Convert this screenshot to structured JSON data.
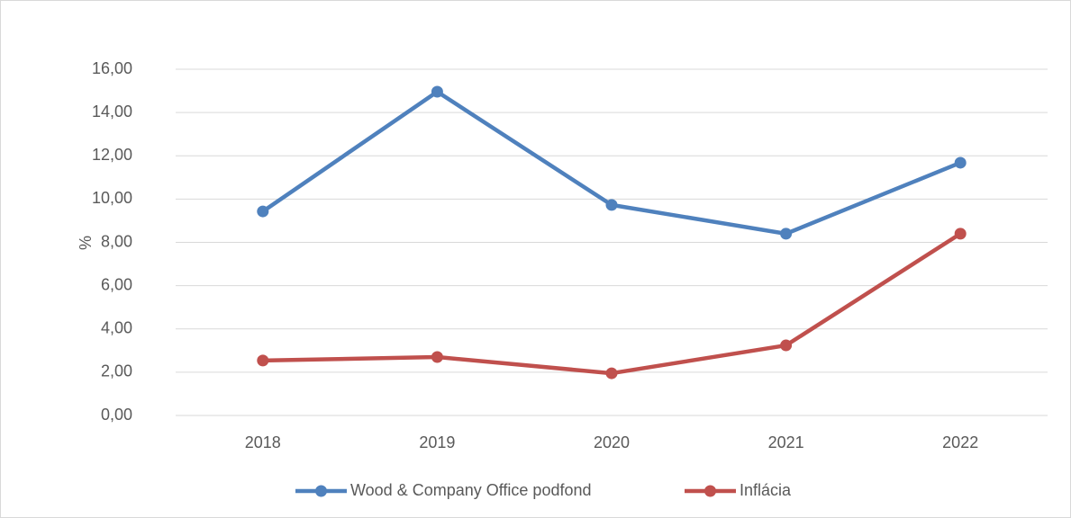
{
  "chart_data": {
    "type": "line",
    "y_label": "%",
    "categories": [
      "2018",
      "2019",
      "2020",
      "2021",
      "2022"
    ],
    "series": [
      {
        "name": "Wood & Company Office podfond",
        "color": "#4f81bd",
        "values": [
          9.43,
          14.96,
          9.73,
          8.4,
          11.68
        ]
      },
      {
        "name": "Inflácia",
        "color": "#c0504d",
        "values": [
          2.54,
          2.7,
          1.95,
          3.24,
          8.4
        ]
      }
    ],
    "ylim": [
      0,
      16
    ],
    "yticks": [
      {
        "value": 0,
        "label": "0,00"
      },
      {
        "value": 2,
        "label": "2,00"
      },
      {
        "value": 4,
        "label": "4,00"
      },
      {
        "value": 6,
        "label": "6,00"
      },
      {
        "value": 8,
        "label": "8,00"
      },
      {
        "value": 10,
        "label": "10,00"
      },
      {
        "value": 12,
        "label": "12,00"
      },
      {
        "value": 14,
        "label": "14,00"
      },
      {
        "value": 16,
        "label": "16,00"
      }
    ],
    "grid": true,
    "legend": "bottom"
  }
}
